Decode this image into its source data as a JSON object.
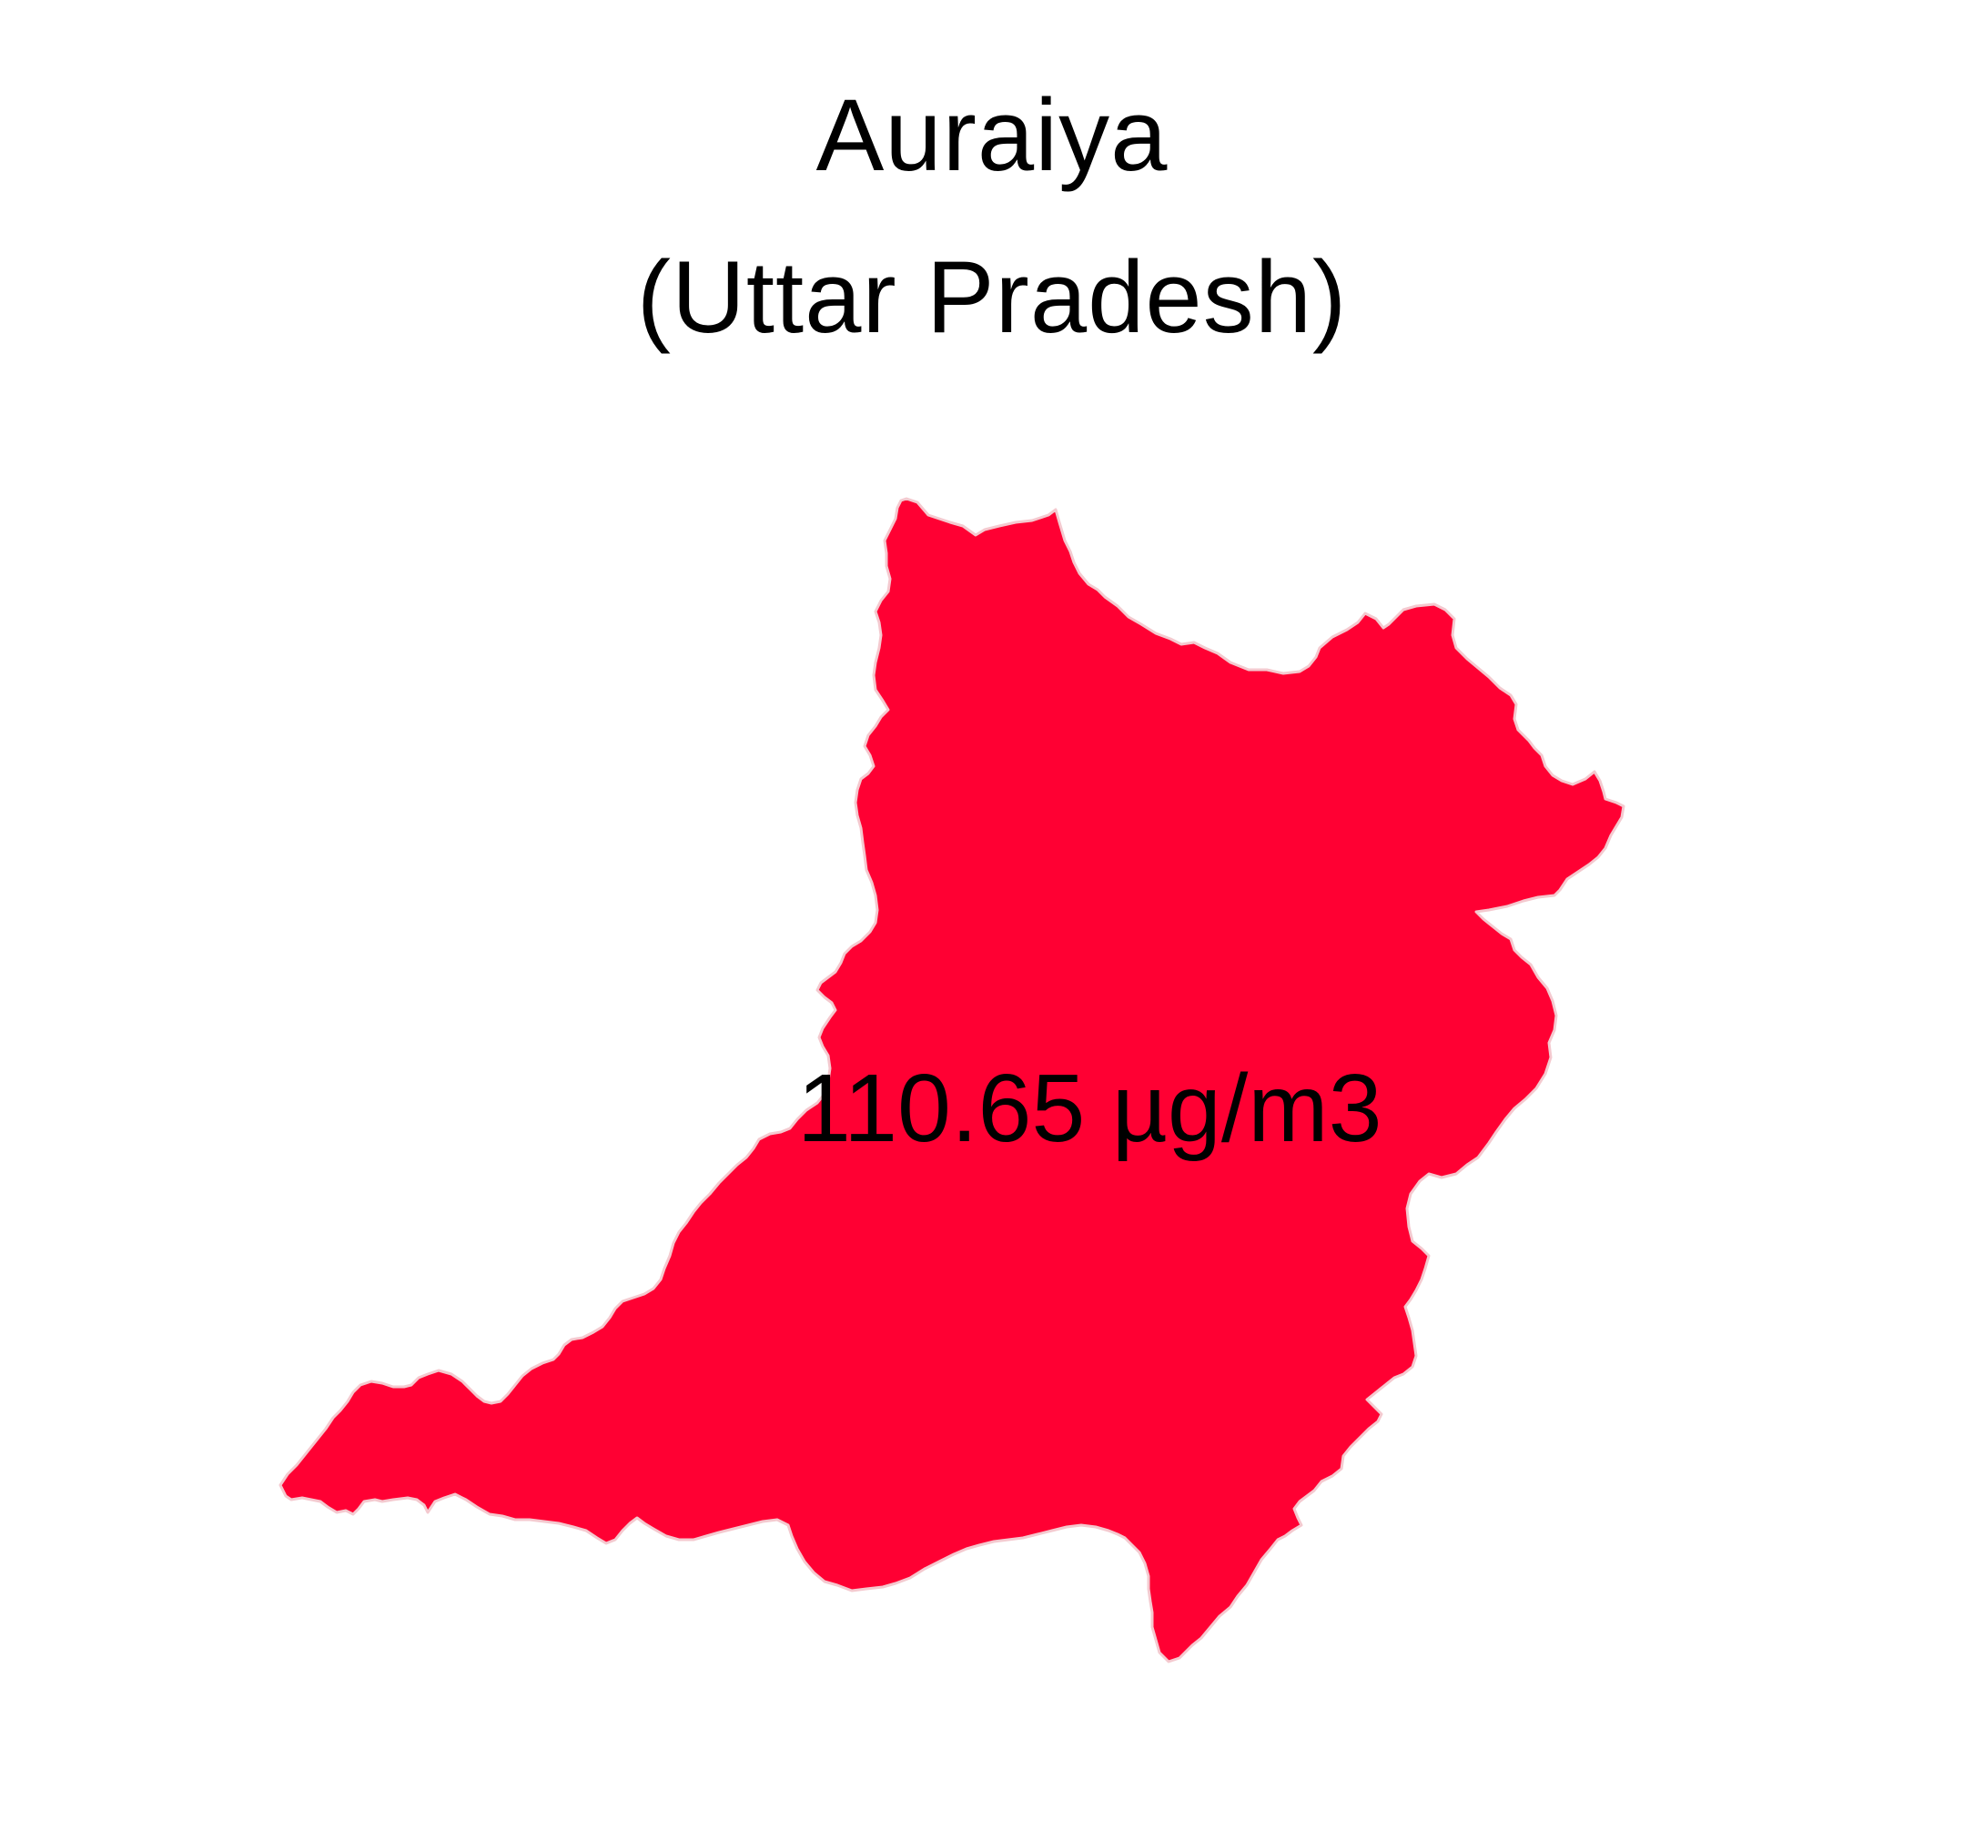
{
  "map": {
    "title_line1": "Auraiya",
    "title_line2": "(Uttar Pradesh)",
    "district": {
      "value_label": "110.65 µg/m3",
      "fill_color": "#ff0033",
      "stroke_color": "#f4c9cf"
    },
    "background_color": "#ffffff"
  }
}
